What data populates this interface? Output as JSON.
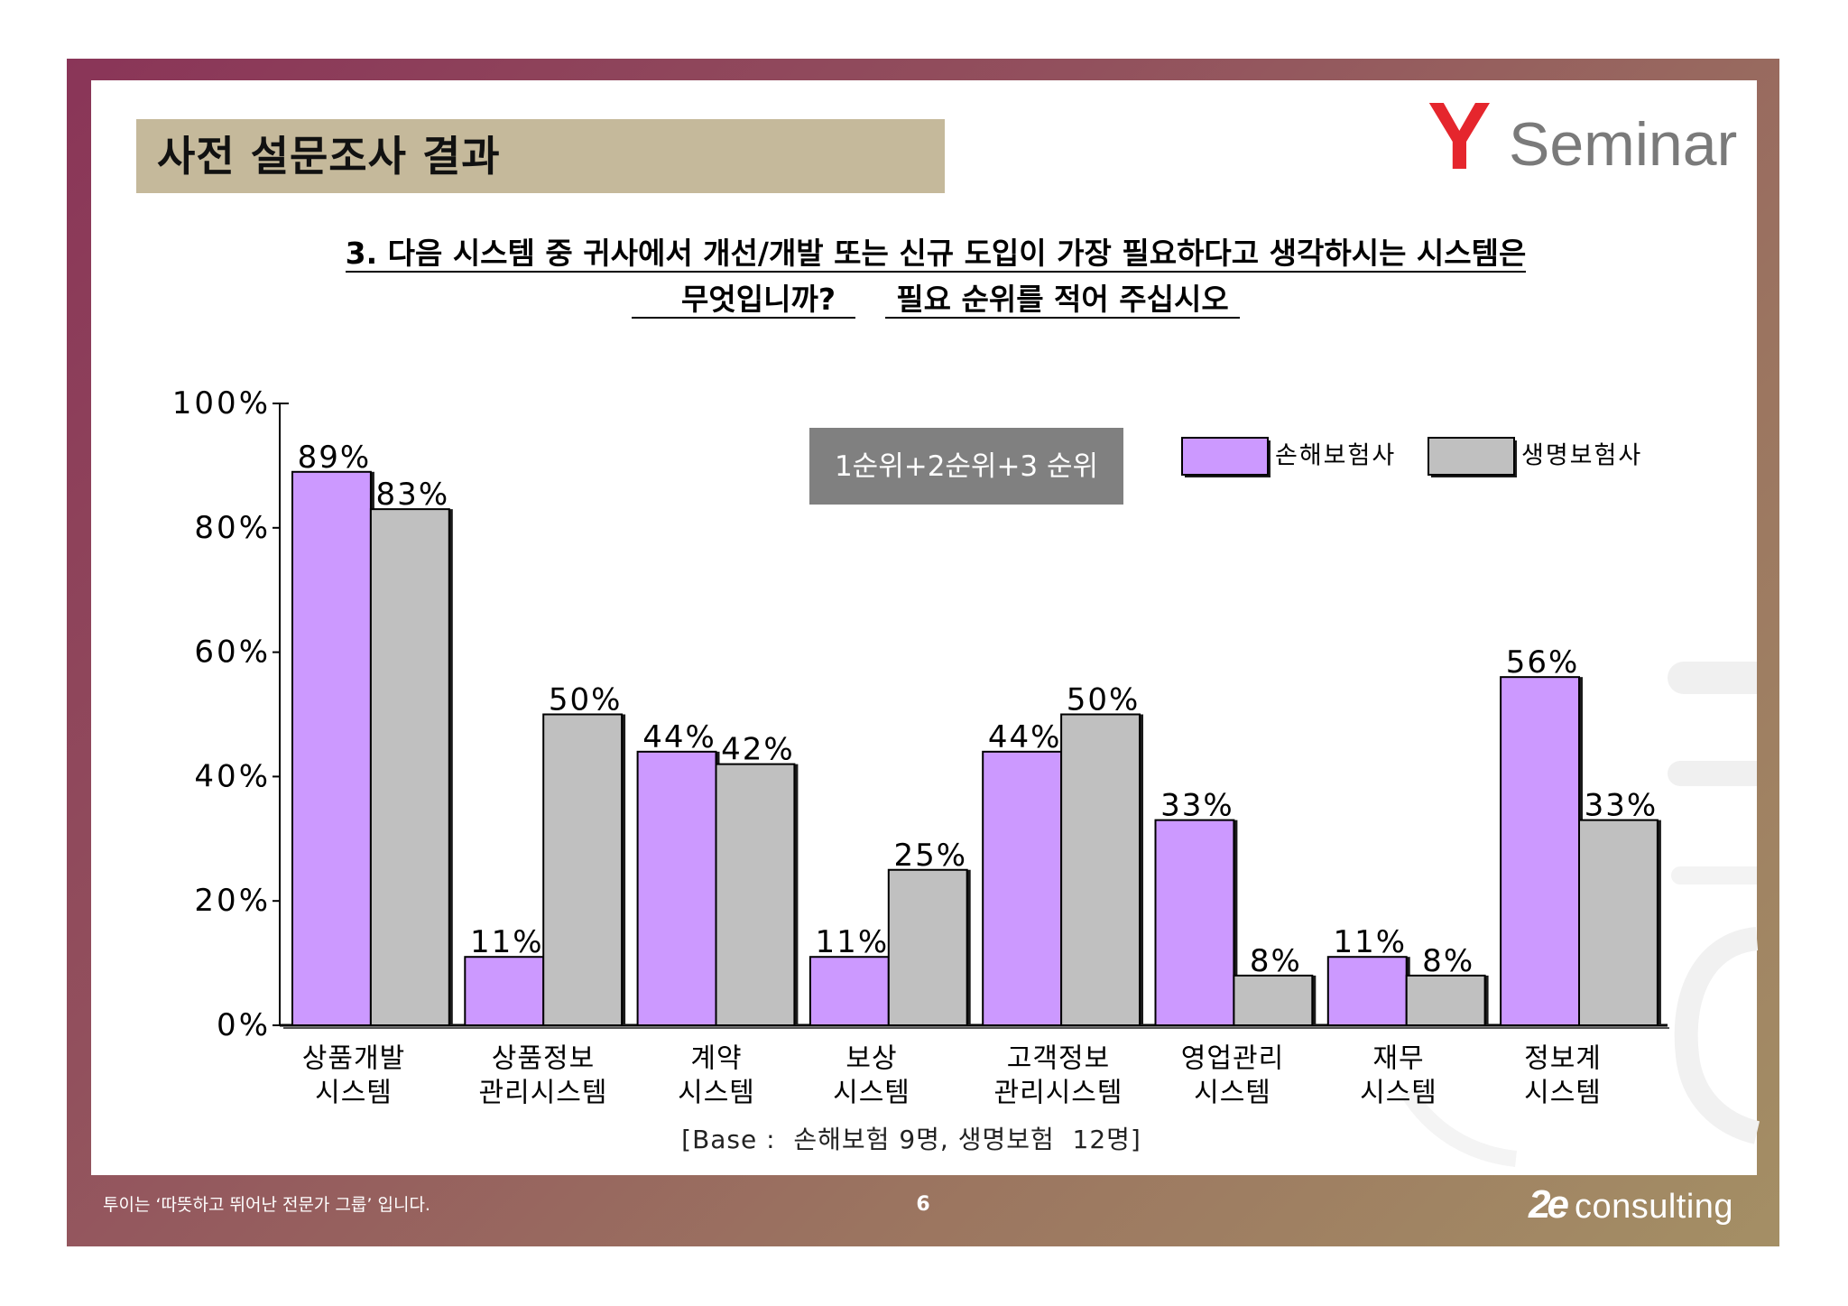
{
  "slide": {
    "title": "사전 설문조사 결과",
    "logo": {
      "mark": "Y",
      "text": "Seminar"
    },
    "question": {
      "line1": "3. 다음 시스템 중 귀사에서 개선/개발 또는 신규 도입이 가장 필요하다고 생각하시는 시스템은",
      "line2a": "무엇입니까?",
      "line2b": "필요 순위를 적어 주십시오"
    },
    "base_note": "[Base :  손해보험 9명, 생명보험  12명]",
    "footer": {
      "slogan": "투이는 ‘따뜻하고 뛰어난 전문가 그룹’ 입니다.",
      "page_number": "6",
      "brand_mark": "2e",
      "brand_text": "consulting"
    },
    "colors": {
      "title_band": "#c5b99b",
      "logo_red": "#e5262d",
      "logo_gray": "#7a7a7a",
      "annotation_box": "#808080"
    }
  },
  "chart_data": {
    "type": "bar",
    "categories": [
      [
        "상품개발",
        "시스템"
      ],
      [
        "상품정보",
        "관리시스템"
      ],
      [
        "계약",
        "시스템"
      ],
      [
        "보상",
        "시스템"
      ],
      [
        "고객정보",
        "관리시스템"
      ],
      [
        "영업관리",
        "시스템"
      ],
      [
        "재무",
        "시스템"
      ],
      [
        "정보계",
        "시스템"
      ]
    ],
    "series": [
      {
        "name": "손해보험사",
        "color": "#cc99ff",
        "values": [
          89,
          11,
          44,
          11,
          44,
          33,
          11,
          56
        ]
      },
      {
        "name": "생명보험사",
        "color": "#c0c0c0",
        "values": [
          83,
          50,
          42,
          25,
          50,
          8,
          8,
          33
        ]
      }
    ],
    "value_suffix": "%",
    "ylim": [
      0,
      100
    ],
    "yticks": [
      0,
      20,
      40,
      60,
      80,
      100
    ],
    "annotation": "1순위+2순위+3 순위",
    "legend_position": "top-right",
    "grid": false
  }
}
